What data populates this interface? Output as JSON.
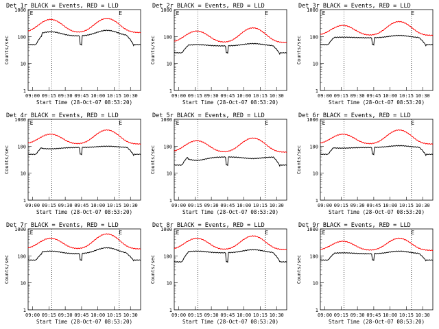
{
  "chart_data": [
    {
      "type": "line",
      "title": "Det 1r BLACK = Events, RED = LLD",
      "xlabel": "Start Time (28-Oct-07 08:53:20)",
      "ylabel": "Counts/sec",
      "yscale": "log",
      "ylim": [
        1,
        1000
      ],
      "xticks": [
        "09:00",
        "09:15",
        "09:30",
        "09:45",
        "10:00",
        "10:15",
        "10:30"
      ],
      "yticks": [
        "1",
        "10",
        "100",
        "1000"
      ],
      "markers": [
        "E",
        "E"
      ],
      "series": [
        {
          "name": "BLACK",
          "color": "#000000",
          "peaks": [
            150,
            170
          ],
          "base": 105,
          "dips": [
            50,
            45
          ]
        },
        {
          "name": "RED",
          "color": "#ff0000",
          "peaks": [
            430,
            470
          ],
          "base": 140
        }
      ]
    },
    {
      "type": "line",
      "title": "Det 2r BLACK = Events, RED = LLD",
      "xlabel": "Start Time (28-Oct-07 08:53:20)",
      "ylabel": "Counts/sec",
      "yscale": "log",
      "ylim": [
        1,
        1000
      ],
      "xticks": [
        "09:00",
        "09:15",
        "09:30",
        "09:45",
        "10:00",
        "10:15",
        "10:30"
      ],
      "yticks": [
        "1",
        "10",
        "100",
        "1000"
      ],
      "markers": [
        "E",
        "E"
      ],
      "series": [
        {
          "name": "BLACK",
          "color": "#000000",
          "peaks": [
            50,
            55
          ],
          "base": 45,
          "dips": [
            25,
            22
          ]
        },
        {
          "name": "RED",
          "color": "#ff0000",
          "peaks": [
            160,
            210
          ],
          "base": 60
        }
      ]
    },
    {
      "type": "line",
      "title": "Det 3r BLACK = Events, RED = LLD",
      "xlabel": "Start Time (28-Oct-07 08:53:20)",
      "ylabel": "Counts/sec",
      "yscale": "log",
      "ylim": [
        1,
        1000
      ],
      "xticks": [
        "09:00",
        "09:15",
        "09:30",
        "09:45",
        "10:00",
        "10:15",
        "10:30"
      ],
      "yticks": [
        "1",
        "10",
        "100",
        "1000"
      ],
      "markers": [
        "E",
        "E"
      ],
      "series": [
        {
          "name": "BLACK",
          "color": "#000000",
          "peaks": [
            95,
            110
          ],
          "base": 90,
          "dips": [
            50,
            45
          ]
        },
        {
          "name": "RED",
          "color": "#ff0000",
          "peaks": [
            260,
            360
          ],
          "base": 110
        }
      ]
    },
    {
      "type": "line",
      "title": "Det 4r BLACK = Events, RED = LLD",
      "xlabel": "Start Time (28-Oct-07 08:53:20)",
      "ylabel": "Counts/sec",
      "yscale": "log",
      "ylim": [
        1,
        1000
      ],
      "xticks": [
        "09:00",
        "09:15",
        "09:30",
        "09:45",
        "10:00",
        "10:15",
        "10:30"
      ],
      "yticks": [
        "1",
        "10",
        "100",
        "1000"
      ],
      "markers": [
        "E",
        "E"
      ],
      "series": [
        {
          "name": "BLACK",
          "color": "#000000",
          "peaks": [
            80,
            100
          ],
          "base": 90,
          "dips": [
            50,
            45
          ]
        },
        {
          "name": "RED",
          "color": "#ff0000",
          "peaks": [
            280,
            400
          ],
          "base": 120
        }
      ]
    },
    {
      "type": "line",
      "title": "Det 5r BLACK = Events, RED = LLD",
      "xlabel": "Start Time (28-Oct-07 08:53:20)",
      "ylabel": "Counts/sec",
      "yscale": "log",
      "ylim": [
        1,
        1000
      ],
      "xticks": [
        "09:00",
        "09:15",
        "09:30",
        "09:45",
        "10:00",
        "10:15",
        "10:30"
      ],
      "yticks": [
        "1",
        "10",
        "100",
        "1000"
      ],
      "markers": [
        "E",
        "E"
      ],
      "series": [
        {
          "name": "BLACK",
          "color": "#000000",
          "peaks": [
            30,
            35
          ],
          "base": 40,
          "dips": [
            20,
            18
          ]
        },
        {
          "name": "RED",
          "color": "#ff0000",
          "peaks": [
            160,
            200
          ],
          "base": 60
        }
      ]
    },
    {
      "type": "line",
      "title": "Det 6r BLACK = Events, RED = LLD",
      "xlabel": "Start Time (28-Oct-07 08:53:20)",
      "ylabel": "Counts/sec",
      "yscale": "log",
      "ylim": [
        1,
        1000
      ],
      "xticks": [
        "09:00",
        "09:15",
        "09:30",
        "09:45",
        "10:00",
        "10:15",
        "10:30"
      ],
      "yticks": [
        "1",
        "10",
        "100",
        "1000"
      ],
      "markers": [
        "E",
        "E"
      ],
      "series": [
        {
          "name": "BLACK",
          "color": "#000000",
          "peaks": [
            85,
            105
          ],
          "base": 90,
          "dips": [
            50,
            45
          ]
        },
        {
          "name": "RED",
          "color": "#ff0000",
          "peaks": [
            280,
            400
          ],
          "base": 120
        }
      ]
    },
    {
      "type": "line",
      "title": "Det 7r BLACK = Events, RED = LLD",
      "xlabel": "Start Time (28-Oct-07 08:53:20)",
      "ylabel": "Counts/sec",
      "yscale": "log",
      "ylim": [
        1,
        1000
      ],
      "xticks": [
        "09:00",
        "09:15",
        "09:30",
        "09:45",
        "10:00",
        "10:15",
        "10:30"
      ],
      "yticks": [
        "1",
        "10",
        "100",
        "1000"
      ],
      "markers": [
        "E",
        "E"
      ],
      "series": [
        {
          "name": "BLACK",
          "color": "#000000",
          "peaks": [
            150,
            200
          ],
          "base": 120,
          "dips": [
            70,
            65
          ]
        },
        {
          "name": "RED",
          "color": "#ff0000",
          "peaks": [
            450,
            650
          ],
          "base": 180
        }
      ]
    },
    {
      "type": "line",
      "title": "Det 8r BLACK = Events, RED = LLD",
      "xlabel": "Start Time (28-Oct-07 08:53:20)",
      "ylabel": "Counts/sec",
      "yscale": "log",
      "ylim": [
        1,
        1000
      ],
      "xticks": [
        "09:00",
        "09:15",
        "09:30",
        "09:45",
        "10:00",
        "10:15",
        "10:30"
      ],
      "yticks": [
        "1",
        "10",
        "100",
        "1000"
      ],
      "markers": [
        "E",
        "E"
      ],
      "series": [
        {
          "name": "BLACK",
          "color": "#000000",
          "peaks": [
            150,
            170
          ],
          "base": 130,
          "dips": [
            60,
            60
          ]
        },
        {
          "name": "RED",
          "color": "#ff0000",
          "peaks": [
            450,
            550
          ],
          "base": 170
        }
      ]
    },
    {
      "type": "line",
      "title": "Det 9r BLACK = Events, RED = LLD",
      "xlabel": "Start Time (28-Oct-07 08:53:20)",
      "ylabel": "Counts/sec",
      "yscale": "log",
      "ylim": [
        1,
        1000
      ],
      "xticks": [
        "09:00",
        "09:15",
        "09:30",
        "09:45",
        "10:00",
        "10:15",
        "10:30"
      ],
      "yticks": [
        "1",
        "10",
        "100",
        "1000"
      ],
      "markers": [
        "E",
        "E"
      ],
      "series": [
        {
          "name": "BLACK",
          "color": "#000000",
          "peaks": [
            130,
            150
          ],
          "base": 120,
          "dips": [
            70,
            65
          ]
        },
        {
          "name": "RED",
          "color": "#ff0000",
          "peaks": [
            350,
            450
          ],
          "base": 160
        }
      ]
    }
  ]
}
